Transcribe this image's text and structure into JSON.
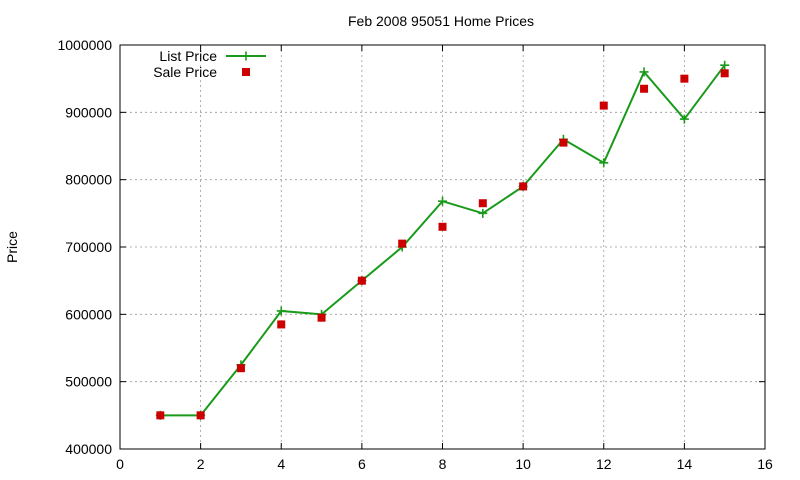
{
  "chart_data": {
    "type": "line",
    "title": "Feb 2008 95051 Home Prices",
    "xlabel": "",
    "ylabel": "Price",
    "xlim": [
      0,
      16
    ],
    "ylim": [
      400000,
      1000000
    ],
    "x_ticks": [
      0,
      2,
      4,
      6,
      8,
      10,
      12,
      14,
      16
    ],
    "x_tick_labels": [
      "0",
      "2",
      "4",
      "6",
      "8",
      "10",
      "12",
      "14",
      "16"
    ],
    "y_ticks": [
      400000,
      500000,
      600000,
      700000,
      800000,
      900000,
      1000000
    ],
    "y_tick_labels": [
      "400000",
      "500000",
      "600000",
      "700000",
      "800000",
      "900000",
      "1000000"
    ],
    "grid": true,
    "legend_position": "top-left",
    "series": [
      {
        "name": "List Price",
        "style": "line-with-plus-markers",
        "color": "#1a9a1a",
        "x": [
          1,
          2,
          3,
          4,
          5,
          6,
          7,
          8,
          9,
          10,
          11,
          12,
          13,
          14,
          15
        ],
        "values": [
          450000,
          450000,
          525000,
          605000,
          600000,
          650000,
          700000,
          768000,
          750000,
          790000,
          860000,
          825000,
          960000,
          890000,
          970000
        ]
      },
      {
        "name": "Sale Price",
        "style": "square-markers",
        "color": "#cc0000",
        "x": [
          1,
          2,
          3,
          4,
          5,
          6,
          7,
          8,
          9,
          10,
          11,
          12,
          13,
          14,
          15
        ],
        "values": [
          450000,
          450000,
          520000,
          585000,
          595000,
          650000,
          705000,
          730000,
          765000,
          790000,
          855000,
          910000,
          935000,
          950000,
          958000
        ]
      }
    ]
  }
}
